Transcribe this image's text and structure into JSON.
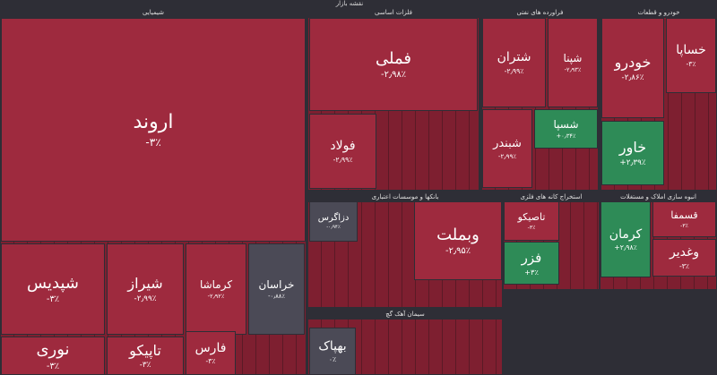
{
  "title": "نقشه بازار",
  "colors": {
    "down": "#9e2a3e",
    "up": "#2e8b57",
    "flat": "#4b4a56"
  },
  "sectors": [
    {
      "name": "شیمیایی",
      "tiles": [
        {
          "name": "اروند",
          "change": "-۳٪",
          "trend": "down"
        },
        {
          "name": "شپدیس",
          "change": "-۳٪",
          "trend": "down"
        },
        {
          "name": "شیراز",
          "change": "-۲٫۹۹٪",
          "trend": "down"
        },
        {
          "name": "کرماشا",
          "change": "-۲٫۹۲٪",
          "trend": "down"
        },
        {
          "name": "خراسان",
          "change": "-۰٫۸۸٪",
          "trend": "flat"
        },
        {
          "name": "نوری",
          "change": "-۳٪",
          "trend": "down"
        },
        {
          "name": "تاپیکو",
          "change": "-۳٪",
          "trend": "down"
        },
        {
          "name": "فارس",
          "change": "-۳٪",
          "trend": "down"
        }
      ]
    },
    {
      "name": "فلزات اساسی",
      "tiles": [
        {
          "name": "فملی",
          "change": "-۲٫۹۸٪",
          "trend": "down"
        },
        {
          "name": "فولاد",
          "change": "-۲٫۹۹٪",
          "trend": "down"
        }
      ]
    },
    {
      "name": "فراورده های نفتی",
      "tiles": [
        {
          "name": "شتران",
          "change": "-۲٫۹۹٪",
          "trend": "down"
        },
        {
          "name": "شپنا",
          "change": "-۲٫۹۳٪",
          "trend": "down"
        },
        {
          "name": "شبندر",
          "change": "-۲٫۹۹٪",
          "trend": "down"
        },
        {
          "name": "شسپا",
          "change": "+۰٫۳۴٪",
          "trend": "up"
        }
      ]
    },
    {
      "name": "خودرو و قطعات",
      "tiles": [
        {
          "name": "خودرو",
          "change": "-۲٫۸۶٪",
          "trend": "down"
        },
        {
          "name": "خساپا",
          "change": "-۳٪",
          "trend": "down"
        },
        {
          "name": "خاور",
          "change": "+۲٫۳۹٪",
          "trend": "up"
        }
      ]
    },
    {
      "name": "بانکها و موسسات اعتباری",
      "tiles": [
        {
          "name": "دزاگرس",
          "change": "-۰٫۹۴٪",
          "trend": "flat"
        },
        {
          "name": "وبملت",
          "change": "-۲٫۹۵٪",
          "trend": "down"
        }
      ]
    },
    {
      "name": "استخراج کانه های فلزی",
      "tiles": [
        {
          "name": "تاصیکو",
          "change": "-۳٪",
          "trend": "down"
        },
        {
          "name": "فزر",
          "change": "+۳٪",
          "trend": "up"
        }
      ]
    },
    {
      "name": "انبوه سازی املاک و مستغلات",
      "tiles": [
        {
          "name": "کرمان",
          "change": "+۲٫۹۸٪",
          "trend": "up"
        },
        {
          "name": "قسمفا",
          "change": "-۳٪",
          "trend": "down"
        },
        {
          "name": "وغدیر",
          "change": "-۳٪",
          "trend": "down"
        }
      ]
    },
    {
      "name": "سیمان آهک گچ",
      "tiles": [
        {
          "name": "بهپاک",
          "change": "۰٪",
          "trend": "flat"
        }
      ]
    }
  ]
}
